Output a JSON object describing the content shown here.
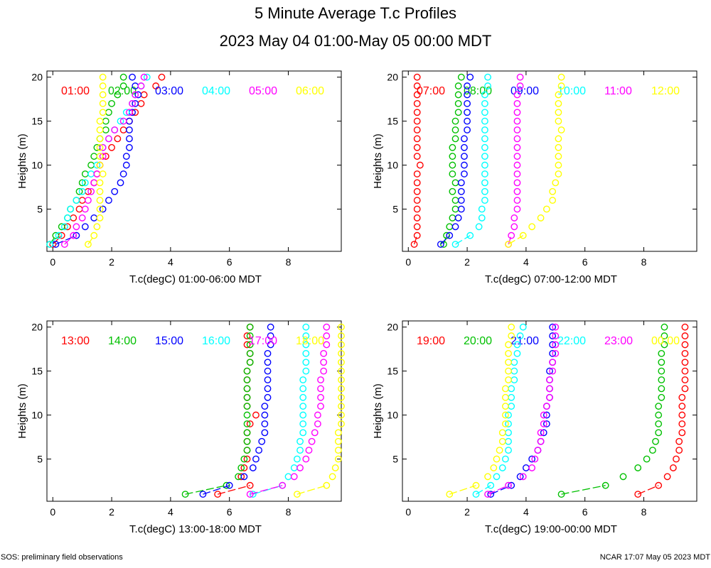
{
  "title": "5 Minute Average T.c Profiles",
  "subtitle": "2023 May 04 01:00-May 05 00:00 MDT",
  "footer_left": "SOS: preliminary field observations",
  "footer_right": "NCAR 17:07 May 05 2023 MDT",
  "heights": [
    1,
    2,
    3,
    4,
    5,
    6,
    7,
    8,
    9,
    10,
    11,
    12,
    13,
    14,
    15,
    16,
    17,
    18,
    19,
    20
  ],
  "chart_data": [
    {
      "type": "scatter",
      "xlabel": "T.c(degC) 01:00-06:00 MDT",
      "ylabel": "Heights (m)",
      "xlim": [
        -0.2,
        9.8
      ],
      "ylim": [
        0.2,
        20.7
      ],
      "xticks": [
        "0",
        "2",
        "4",
        "6",
        "8"
      ],
      "yticks": [
        "5",
        "10",
        "15",
        "20"
      ],
      "series": [
        {
          "name": "01:00",
          "color": "#ff0000",
          "x": [
            0.0,
            0.3,
            0.5,
            0.7,
            0.9,
            1.0,
            1.2,
            1.4,
            1.5,
            1.6,
            1.8,
            2.0,
            2.2,
            2.4,
            2.6,
            2.8,
            3.0,
            3.1,
            3.5,
            3.7
          ]
        },
        {
          "name": "02:00",
          "color": "#00c000",
          "x": [
            -0.1,
            0.1,
            0.3,
            0.5,
            0.6,
            0.8,
            0.9,
            1.0,
            1.1,
            1.3,
            1.4,
            1.5,
            1.6,
            1.8,
            1.8,
            1.9,
            2.0,
            2.2,
            2.4,
            2.4
          ]
        },
        {
          "name": "03:00",
          "color": "#0000ff",
          "x": [
            0.1,
            0.8,
            1.1,
            1.4,
            1.7,
            1.9,
            2.1,
            2.3,
            2.4,
            2.5,
            2.5,
            2.6,
            2.6,
            2.6,
            2.6,
            2.7,
            2.8,
            2.9,
            2.8,
            2.7
          ]
        },
        {
          "name": "04:00",
          "color": "#00ffff",
          "x": [
            -0.1,
            0.2,
            0.4,
            0.5,
            0.6,
            0.8,
            1.0,
            1.1,
            1.3,
            1.5,
            1.6,
            1.7,
            1.9,
            2.1,
            2.3,
            2.5,
            2.7,
            2.8,
            3.0,
            3.2
          ]
        },
        {
          "name": "05:00",
          "color": "#ff00ff",
          "x": [
            0.4,
            0.7,
            0.8,
            1.0,
            1.1,
            1.2,
            1.3,
            1.4,
            1.5,
            1.6,
            1.7,
            1.7,
            1.9,
            2.1,
            2.4,
            2.6,
            2.7,
            2.8,
            3.0,
            3.1
          ]
        },
        {
          "name": "06:00",
          "color": "#ffff00",
          "x": [
            1.2,
            1.4,
            1.5,
            1.6,
            1.6,
            1.6,
            1.6,
            1.6,
            1.7,
            1.6,
            1.6,
            1.6,
            1.6,
            1.6,
            1.6,
            1.7,
            1.7,
            1.7,
            1.7,
            1.7
          ]
        }
      ]
    },
    {
      "type": "scatter",
      "xlabel": "T.c(degC) 07:00-12:00 MDT",
      "ylabel": "Heights (m)",
      "xlim": [
        -0.2,
        9.8
      ],
      "ylim": [
        0.2,
        20.7
      ],
      "xticks": [
        "0",
        "2",
        "4",
        "6",
        "8"
      ],
      "yticks": [
        "5",
        "10",
        "15",
        "20"
      ],
      "series": [
        {
          "name": "07:00",
          "color": "#ff0000",
          "x": [
            0.2,
            0.3,
            0.3,
            0.3,
            0.3,
            0.3,
            0.3,
            0.3,
            0.3,
            0.4,
            0.3,
            0.3,
            0.3,
            0.3,
            0.3,
            0.3,
            0.3,
            0.3,
            0.3,
            0.3
          ]
        },
        {
          "name": "08:00",
          "color": "#00c000",
          "x": [
            1.2,
            1.3,
            1.4,
            1.5,
            1.6,
            1.6,
            1.5,
            1.6,
            1.5,
            1.5,
            1.5,
            1.5,
            1.6,
            1.6,
            1.6,
            1.7,
            1.7,
            1.7,
            1.7,
            1.8
          ]
        },
        {
          "name": "09:00",
          "color": "#0000ff",
          "x": [
            1.1,
            1.4,
            1.6,
            1.7,
            1.8,
            1.8,
            1.8,
            1.8,
            1.9,
            1.9,
            1.9,
            1.9,
            1.9,
            2.0,
            2.0,
            2.0,
            2.0,
            2.0,
            2.0,
            2.1
          ]
        },
        {
          "name": "10:00",
          "color": "#00ffff",
          "x": [
            1.6,
            2.1,
            2.4,
            2.5,
            2.5,
            2.6,
            2.6,
            2.6,
            2.6,
            2.6,
            2.6,
            2.6,
            2.6,
            2.6,
            2.6,
            2.6,
            2.6,
            2.6,
            2.7,
            2.7
          ]
        },
        {
          "name": "11:00",
          "color": "#ff00ff",
          "x": [
            3.4,
            3.5,
            3.6,
            3.6,
            3.7,
            3.7,
            3.7,
            3.7,
            3.7,
            3.7,
            3.7,
            3.7,
            3.7,
            3.7,
            3.7,
            3.7,
            3.7,
            3.7,
            3.8,
            3.8
          ]
        },
        {
          "name": "12:00",
          "color": "#ffff00",
          "x": [
            3.4,
            3.9,
            4.2,
            4.5,
            4.7,
            4.9,
            4.9,
            5.0,
            5.1,
            5.1,
            5.1,
            5.1,
            5.1,
            5.2,
            5.1,
            5.1,
            5.1,
            5.1,
            5.2,
            5.2
          ]
        }
      ]
    },
    {
      "type": "scatter",
      "xlabel": "T.c(degC) 13:00-18:00 MDT",
      "ylabel": "Heights (m)",
      "xlim": [
        -0.2,
        9.8
      ],
      "ylim": [
        0.2,
        20.7
      ],
      "xticks": [
        "0",
        "2",
        "4",
        "6",
        "8"
      ],
      "yticks": [
        "5",
        "10",
        "15",
        "20"
      ],
      "series": [
        {
          "name": "13:00",
          "color": "#ff0000",
          "x": [
            5.6,
            6.7,
            6.4,
            6.5,
            6.6,
            6.6,
            6.6,
            6.6,
            6.7,
            6.9,
            6.6,
            6.6,
            6.6,
            6.6,
            6.6,
            6.7,
            6.7,
            6.6,
            6.6,
            6.7
          ]
        },
        {
          "name": "14:00",
          "color": "#00c000",
          "x": [
            4.5,
            5.9,
            6.3,
            6.4,
            6.5,
            6.6,
            6.6,
            6.6,
            6.6,
            6.6,
            6.6,
            6.6,
            6.6,
            6.6,
            6.6,
            6.7,
            6.7,
            6.7,
            6.7,
            6.7
          ]
        },
        {
          "name": "15:00",
          "color": "#0000ff",
          "x": [
            5.1,
            6.0,
            6.5,
            6.8,
            6.9,
            7.0,
            7.1,
            7.2,
            7.2,
            7.2,
            7.2,
            7.3,
            7.3,
            7.3,
            7.3,
            7.3,
            7.3,
            7.4,
            7.4,
            7.4
          ]
        },
        {
          "name": "16:00",
          "color": "#00ffff",
          "x": [
            6.8,
            7.8,
            8.0,
            8.2,
            8.3,
            8.4,
            8.4,
            8.5,
            8.5,
            8.5,
            8.5,
            8.5,
            8.5,
            8.5,
            8.6,
            8.6,
            8.6,
            8.6,
            8.6,
            8.6
          ]
        },
        {
          "name": "17:00",
          "color": "#ff00ff",
          "x": [
            6.7,
            7.8,
            8.2,
            8.4,
            8.6,
            8.7,
            8.8,
            8.9,
            9.0,
            9.0,
            9.1,
            9.1,
            9.1,
            9.1,
            9.2,
            9.2,
            9.2,
            9.3,
            9.3,
            9.3
          ]
        },
        {
          "name": "18:00",
          "color": "#ffff00",
          "x": [
            8.3,
            9.3,
            9.5,
            9.6,
            9.7,
            9.7,
            9.7,
            9.7,
            9.8,
            9.8,
            9.8,
            9.8,
            9.8,
            9.8,
            9.8,
            9.8,
            9.8,
            9.8,
            9.8,
            9.8
          ]
        }
      ]
    },
    {
      "type": "scatter",
      "xlabel": "T.c(degC) 19:00-00:00 MDT",
      "ylabel": "Heights (m)",
      "xlim": [
        -0.2,
        9.8
      ],
      "ylim": [
        0.2,
        20.7
      ],
      "xticks": [
        "0",
        "2",
        "4",
        "6",
        "8"
      ],
      "yticks": [
        "5",
        "10",
        "15",
        "20"
      ],
      "series": [
        {
          "name": "19:00",
          "color": "#ff0000",
          "x": [
            7.8,
            8.5,
            8.8,
            9.0,
            9.1,
            9.2,
            9.2,
            9.3,
            9.3,
            9.3,
            9.3,
            9.3,
            9.4,
            9.4,
            9.4,
            9.4,
            9.4,
            9.4,
            9.4,
            9.4
          ]
        },
        {
          "name": "20:00",
          "color": "#00c000",
          "x": [
            5.2,
            6.7,
            7.3,
            7.8,
            8.1,
            8.3,
            8.4,
            8.5,
            8.5,
            8.5,
            8.5,
            8.6,
            8.6,
            8.6,
            8.6,
            8.6,
            8.6,
            8.7,
            8.7,
            8.7
          ]
        },
        {
          "name": "21:00",
          "color": "#0000ff",
          "x": [
            2.8,
            3.5,
            3.8,
            4.0,
            4.2,
            4.4,
            4.5,
            4.6,
            4.7,
            4.7,
            4.7,
            4.8,
            4.8,
            4.8,
            4.8,
            4.9,
            4.9,
            4.9,
            4.9,
            4.9
          ]
        },
        {
          "name": "22:00",
          "color": "#00ffff",
          "x": [
            2.3,
            2.8,
            3.0,
            3.2,
            3.3,
            3.4,
            3.4,
            3.4,
            3.4,
            3.4,
            3.5,
            3.5,
            3.5,
            3.6,
            3.6,
            3.6,
            3.7,
            3.7,
            3.8,
            3.9
          ]
        },
        {
          "name": "23:00",
          "color": "#ff00ff",
          "x": [
            2.7,
            3.4,
            3.9,
            4.2,
            4.3,
            4.4,
            4.5,
            4.5,
            4.6,
            4.6,
            4.7,
            4.8,
            4.8,
            4.8,
            4.9,
            4.9,
            5.0,
            5.0,
            5.0,
            5.0
          ]
        },
        {
          "name": "00:00",
          "color": "#ffff00",
          "x": [
            1.4,
            2.3,
            2.7,
            2.9,
            3.0,
            3.1,
            3.2,
            3.2,
            3.3,
            3.3,
            3.3,
            3.3,
            3.3,
            3.4,
            3.4,
            3.4,
            3.4,
            3.4,
            3.5,
            3.5
          ]
        }
      ]
    }
  ]
}
